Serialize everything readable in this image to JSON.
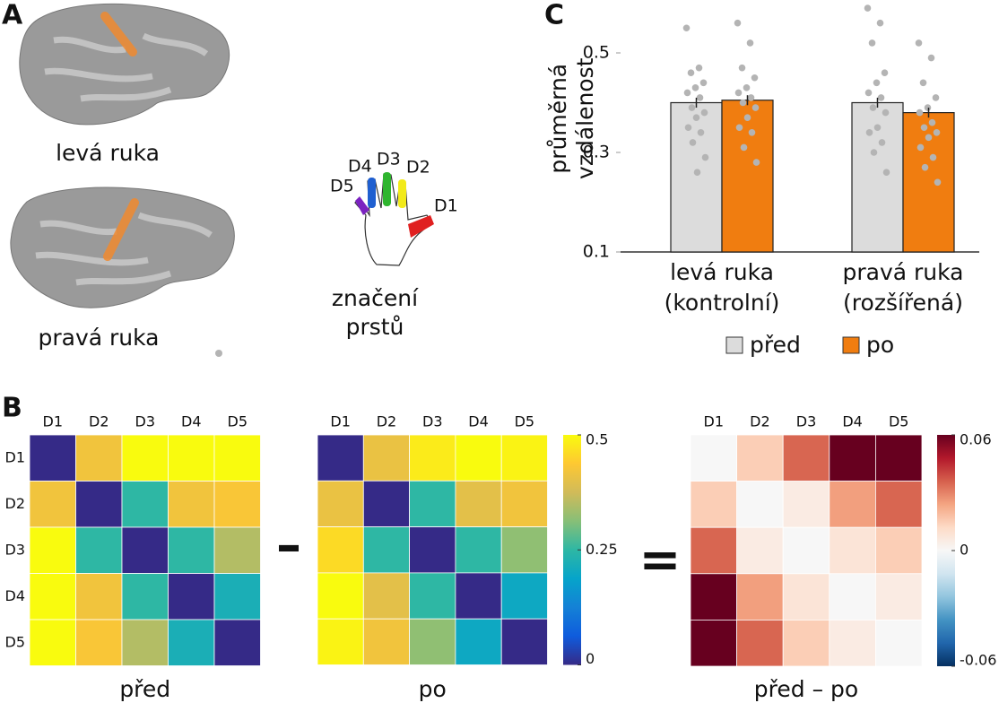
{
  "panel_labels": [
    "A",
    "B",
    "C"
  ],
  "brains": [
    "levá ruka",
    "pravá ruka"
  ],
  "hand": {
    "fingers": [
      "D1",
      "D2",
      "D3",
      "D4",
      "D5"
    ],
    "caption": [
      "značení",
      "prstů"
    ]
  },
  "operators": [
    "–",
    "="
  ],
  "chart_data": [
    {
      "type": "bar",
      "ylabel": [
        "průměrná",
        "vzdálenost"
      ],
      "categories": [
        [
          "levá ruka",
          "(kontrolní)"
        ],
        [
          "pravá ruka",
          "(rozšířená)"
        ]
      ],
      "ylim": [
        0.1,
        0.6
      ],
      "yticks": [
        0.1,
        0.3,
        0.5
      ],
      "point_color": "#b4b4b4",
      "series": [
        {
          "name": "před",
          "color": "#dcdcdc",
          "values": [
            0.4,
            0.4
          ],
          "errors": [
            0.01,
            0.01
          ],
          "points": [
            [
              0.55,
              0.47,
              0.46,
              0.44,
              0.43,
              0.42,
              0.41,
              0.39,
              0.38,
              0.37,
              0.35,
              0.34,
              0.32,
              0.29,
              0.26
            ],
            [
              0.59,
              0.56,
              0.52,
              0.46,
              0.44,
              0.42,
              0.41,
              0.39,
              0.38,
              0.35,
              0.34,
              0.32,
              0.3,
              0.26
            ]
          ]
        },
        {
          "name": "po",
          "color": "#f07d10",
          "values": [
            0.405,
            0.38
          ],
          "errors": [
            0.01,
            0.01
          ],
          "points": [
            [
              0.56,
              0.52,
              0.47,
              0.45,
              0.43,
              0.42,
              0.41,
              0.4,
              0.39,
              0.37,
              0.35,
              0.34,
              0.31,
              0.28
            ],
            [
              0.52,
              0.49,
              0.44,
              0.41,
              0.39,
              0.38,
              0.36,
              0.35,
              0.34,
              0.33,
              0.31,
              0.29,
              0.27,
              0.24
            ]
          ]
        }
      ]
    },
    {
      "type": "heatmap",
      "title": "před",
      "x_categories": [
        "D1",
        "D2",
        "D3",
        "D4",
        "D5"
      ],
      "y_categories": [
        "D1",
        "D2",
        "D3",
        "D4",
        "D5"
      ],
      "values": [
        [
          0,
          0.42,
          0.5,
          0.5,
          0.5
        ],
        [
          0.42,
          0,
          0.25,
          0.42,
          0.43
        ],
        [
          0.5,
          0.25,
          0,
          0.25,
          0.35
        ],
        [
          0.5,
          0.42,
          0.25,
          0,
          0.22
        ],
        [
          0.5,
          0.43,
          0.35,
          0.22,
          0
        ]
      ],
      "zlim": [
        0,
        0.5
      ],
      "colormap": [
        "#352a87",
        "#0f5cdd",
        "#1481d6",
        "#06a4ca",
        "#2eb7a4",
        "#87bf77",
        "#d1bb59",
        "#fec832",
        "#f9fb0e"
      ]
    },
    {
      "type": "heatmap",
      "title": "po",
      "x_categories": [
        "D1",
        "D2",
        "D3",
        "D4",
        "D5"
      ],
      "values": [
        [
          0,
          0.41,
          0.48,
          0.5,
          0.49
        ],
        [
          0.41,
          0,
          0.25,
          0.4,
          0.42
        ],
        [
          0.46,
          0.25,
          0,
          0.25,
          0.32
        ],
        [
          0.5,
          0.4,
          0.25,
          0,
          0.2
        ],
        [
          0.49,
          0.42,
          0.32,
          0.2,
          0
        ]
      ],
      "zlim": [
        0,
        0.5
      ],
      "zticks": [
        0,
        0.25,
        0.5
      ],
      "colorbar": true,
      "colormap": [
        "#352a87",
        "#0f5cdd",
        "#1481d6",
        "#06a4ca",
        "#2eb7a4",
        "#87bf77",
        "#d1bb59",
        "#fec832",
        "#f9fb0e"
      ]
    },
    {
      "type": "heatmap",
      "title": "před – po",
      "x_categories": [
        "D1",
        "D2",
        "D3",
        "D4",
        "D5"
      ],
      "values": [
        [
          0,
          0.015,
          0.035,
          0.06,
          0.06
        ],
        [
          0.015,
          0,
          0.005,
          0.025,
          0.035
        ],
        [
          0.035,
          0.005,
          0,
          0.008,
          0.015
        ],
        [
          0.06,
          0.025,
          0.008,
          0,
          0.005
        ],
        [
          0.06,
          0.035,
          0.015,
          0.005,
          0
        ]
      ],
      "zlim": [
        -0.06,
        0.06
      ],
      "zticks": [
        -0.06,
        0,
        0.06
      ],
      "colorbar": true,
      "colormap": [
        "#053061",
        "#2166ac",
        "#4393c3",
        "#92c5de",
        "#d1e5f0",
        "#f7f7f7",
        "#fddbc7",
        "#f4a582",
        "#d6604d",
        "#b2182b",
        "#67001f"
      ]
    }
  ]
}
